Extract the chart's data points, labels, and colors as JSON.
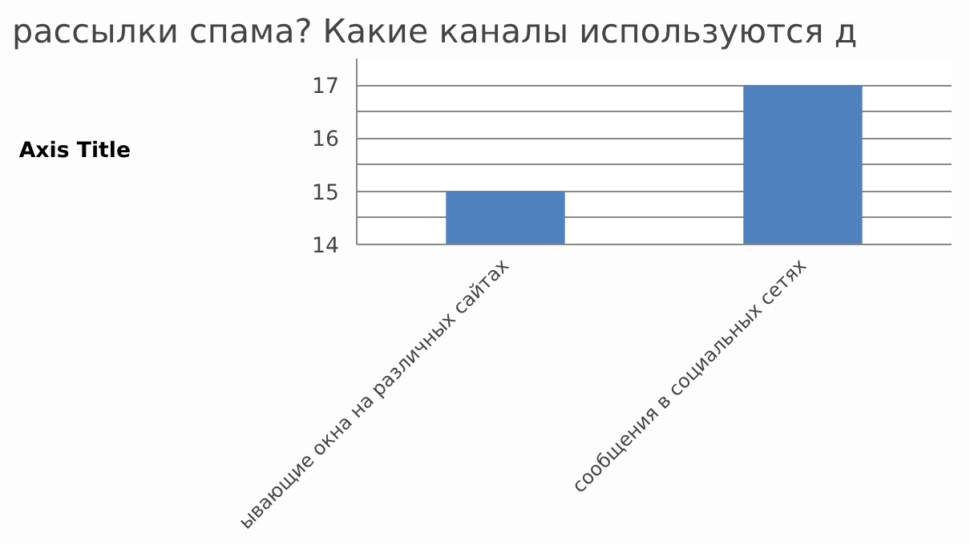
{
  "chart_data": {
    "type": "bar",
    "title": "рассылки спама? Какие каналы используются д",
    "ylabel": "Axis Title",
    "categories": [
      "ывающие окна на различных сайтах",
      "сообщения в социальных сетях"
    ],
    "values": [
      15,
      17
    ],
    "color": "#4f81bd",
    "ylim": [
      14,
      17.5
    ],
    "yticks": [
      14,
      {
        "value": 14.5,
        "label": null
      },
      15,
      {
        "value": 15.5,
        "label": null
      },
      16,
      {
        "value": 16.5,
        "label": null
      },
      17
    ],
    "grid": "y"
  }
}
